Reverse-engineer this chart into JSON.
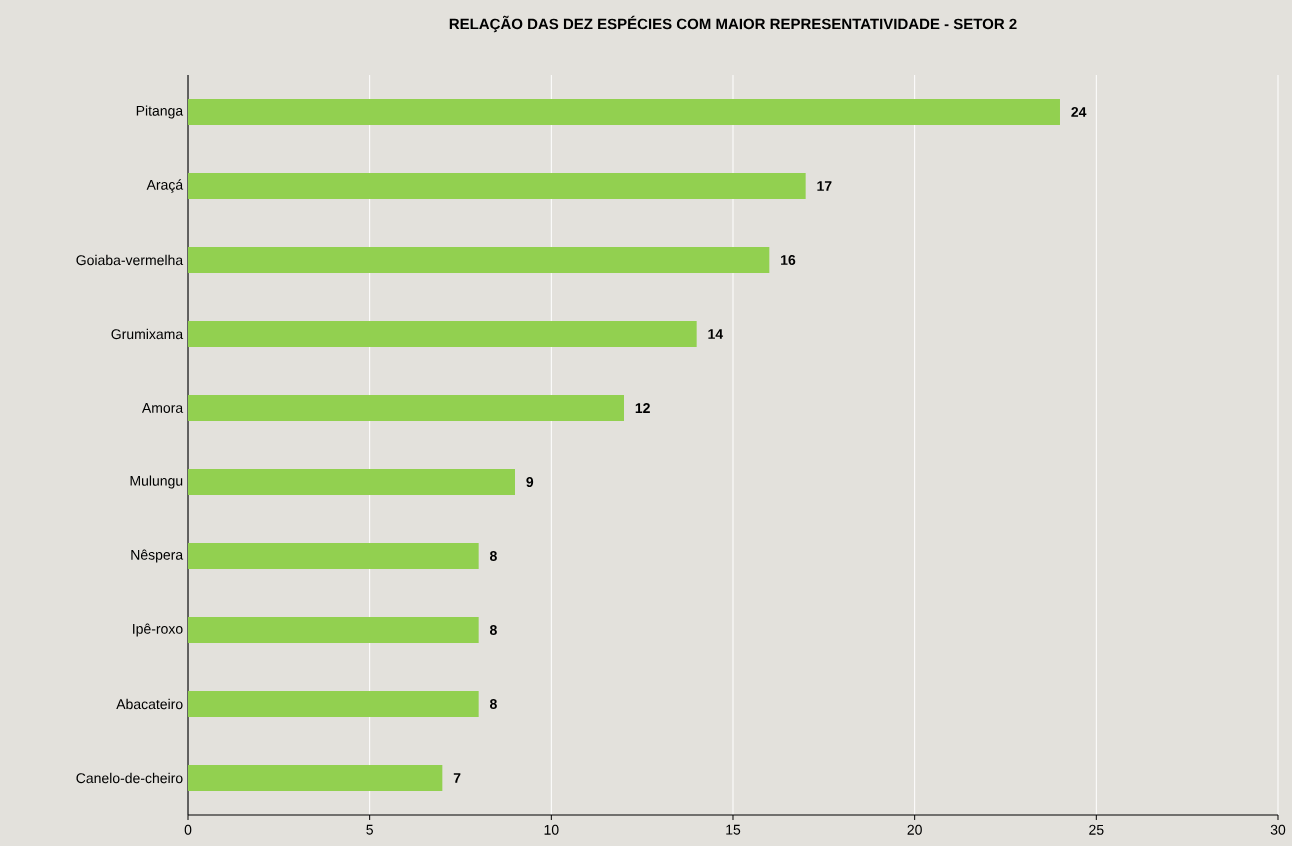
{
  "chart_data": {
    "type": "bar",
    "orientation": "horizontal",
    "title": "RELAÇÃO DAS DEZ ESPÉCIES COM MAIOR REPRESENTATIVIDADE - SETOR 2",
    "categories": [
      "Pitanga",
      "Araçá",
      "Goiaba-vermelha",
      "Grumixama",
      "Amora",
      "Mulungu",
      "Nêspera",
      "Ipê-roxo",
      "Abacateiro",
      "Canelo-de-cheiro"
    ],
    "values": [
      24,
      17,
      16,
      14,
      12,
      9,
      8,
      8,
      8,
      7
    ],
    "color": "#92d050",
    "xlim": [
      0,
      30
    ],
    "xticks": [
      0,
      5,
      10,
      15,
      20,
      25,
      30
    ],
    "grid": "x",
    "data_labels": true
  }
}
